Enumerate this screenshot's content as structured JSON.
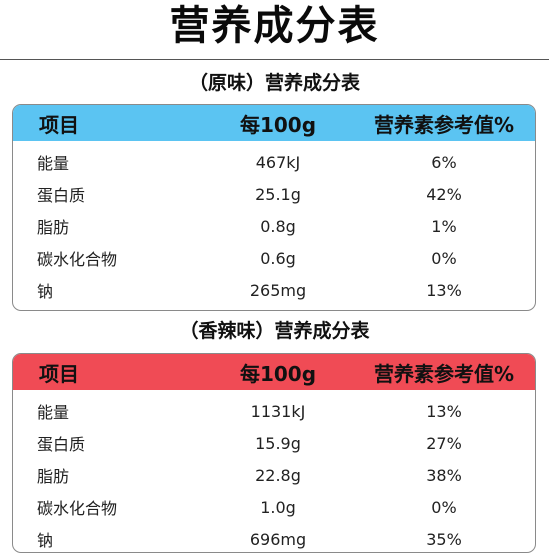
{
  "page_title": "营养成分表",
  "sections": [
    {
      "title": "（原味）营养成分表",
      "header_color": "#5bc4f2",
      "headers": [
        "项目",
        "每100g",
        "营养素参考值%"
      ],
      "rows": [
        [
          "能量",
          "467kJ",
          "6%"
        ],
        [
          "蛋白质",
          "25.1g",
          "42%"
        ],
        [
          "脂肪",
          "0.8g",
          "1%"
        ],
        [
          "碳水化合物",
          "0.6g",
          "0%"
        ],
        [
          "钠",
          "265mg",
          "13%"
        ]
      ]
    },
    {
      "title": "（香辣味）营养成分表",
      "header_color": "#f04b55",
      "headers": [
        "项目",
        "每100g",
        "营养素参考值%"
      ],
      "rows": [
        [
          "能量",
          "1131kJ",
          "13%"
        ],
        [
          "蛋白质",
          "15.9g",
          "27%"
        ],
        [
          "脂肪",
          "22.8g",
          "38%"
        ],
        [
          "碳水化合物",
          "1.0g",
          "0%"
        ],
        [
          "钠",
          "696mg",
          "35%"
        ]
      ]
    }
  ]
}
